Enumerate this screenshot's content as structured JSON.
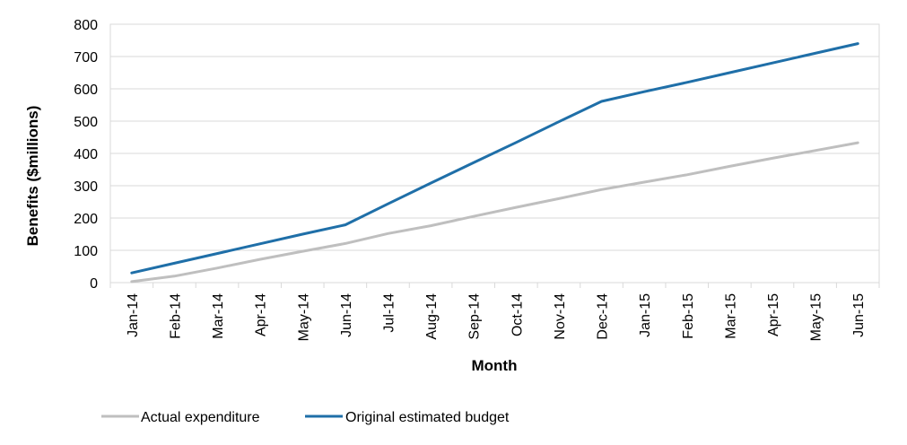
{
  "chart_data": {
    "type": "line",
    "title": "",
    "xlabel": "Month",
    "ylabel": "Benefits ($millions)",
    "ylim": [
      0,
      800
    ],
    "yticks": [
      0,
      100,
      200,
      300,
      400,
      500,
      600,
      700,
      800
    ],
    "grid": true,
    "legend_position": "bottom-left",
    "categories": [
      "Jan-14",
      "Feb-14",
      "Mar-14",
      "Apr-14",
      "May-14",
      "Jun-14",
      "Jul-14",
      "Aug-14",
      "Sep-14",
      "Oct-14",
      "Nov-14",
      "Dec-14",
      "Jan-15",
      "Feb-15",
      "Mar-15",
      "Apr-15",
      "May-15",
      "Jun-15"
    ],
    "series": [
      {
        "name": "Actual expenditure",
        "color": "#BFBFBF",
        "values": [
          3,
          20,
          45,
          72,
          97,
          121,
          152,
          176,
          205,
          233,
          260,
          288,
          311,
          334,
          360,
          385,
          409,
          433
        ]
      },
      {
        "name": "Original estimated budget",
        "color": "#1F6FA8",
        "values": [
          30,
          60,
          90,
          120,
          150,
          179,
          244,
          308,
          371,
          434,
          498,
          561,
          591,
          620,
          650,
          680,
          710,
          740
        ]
      }
    ]
  }
}
